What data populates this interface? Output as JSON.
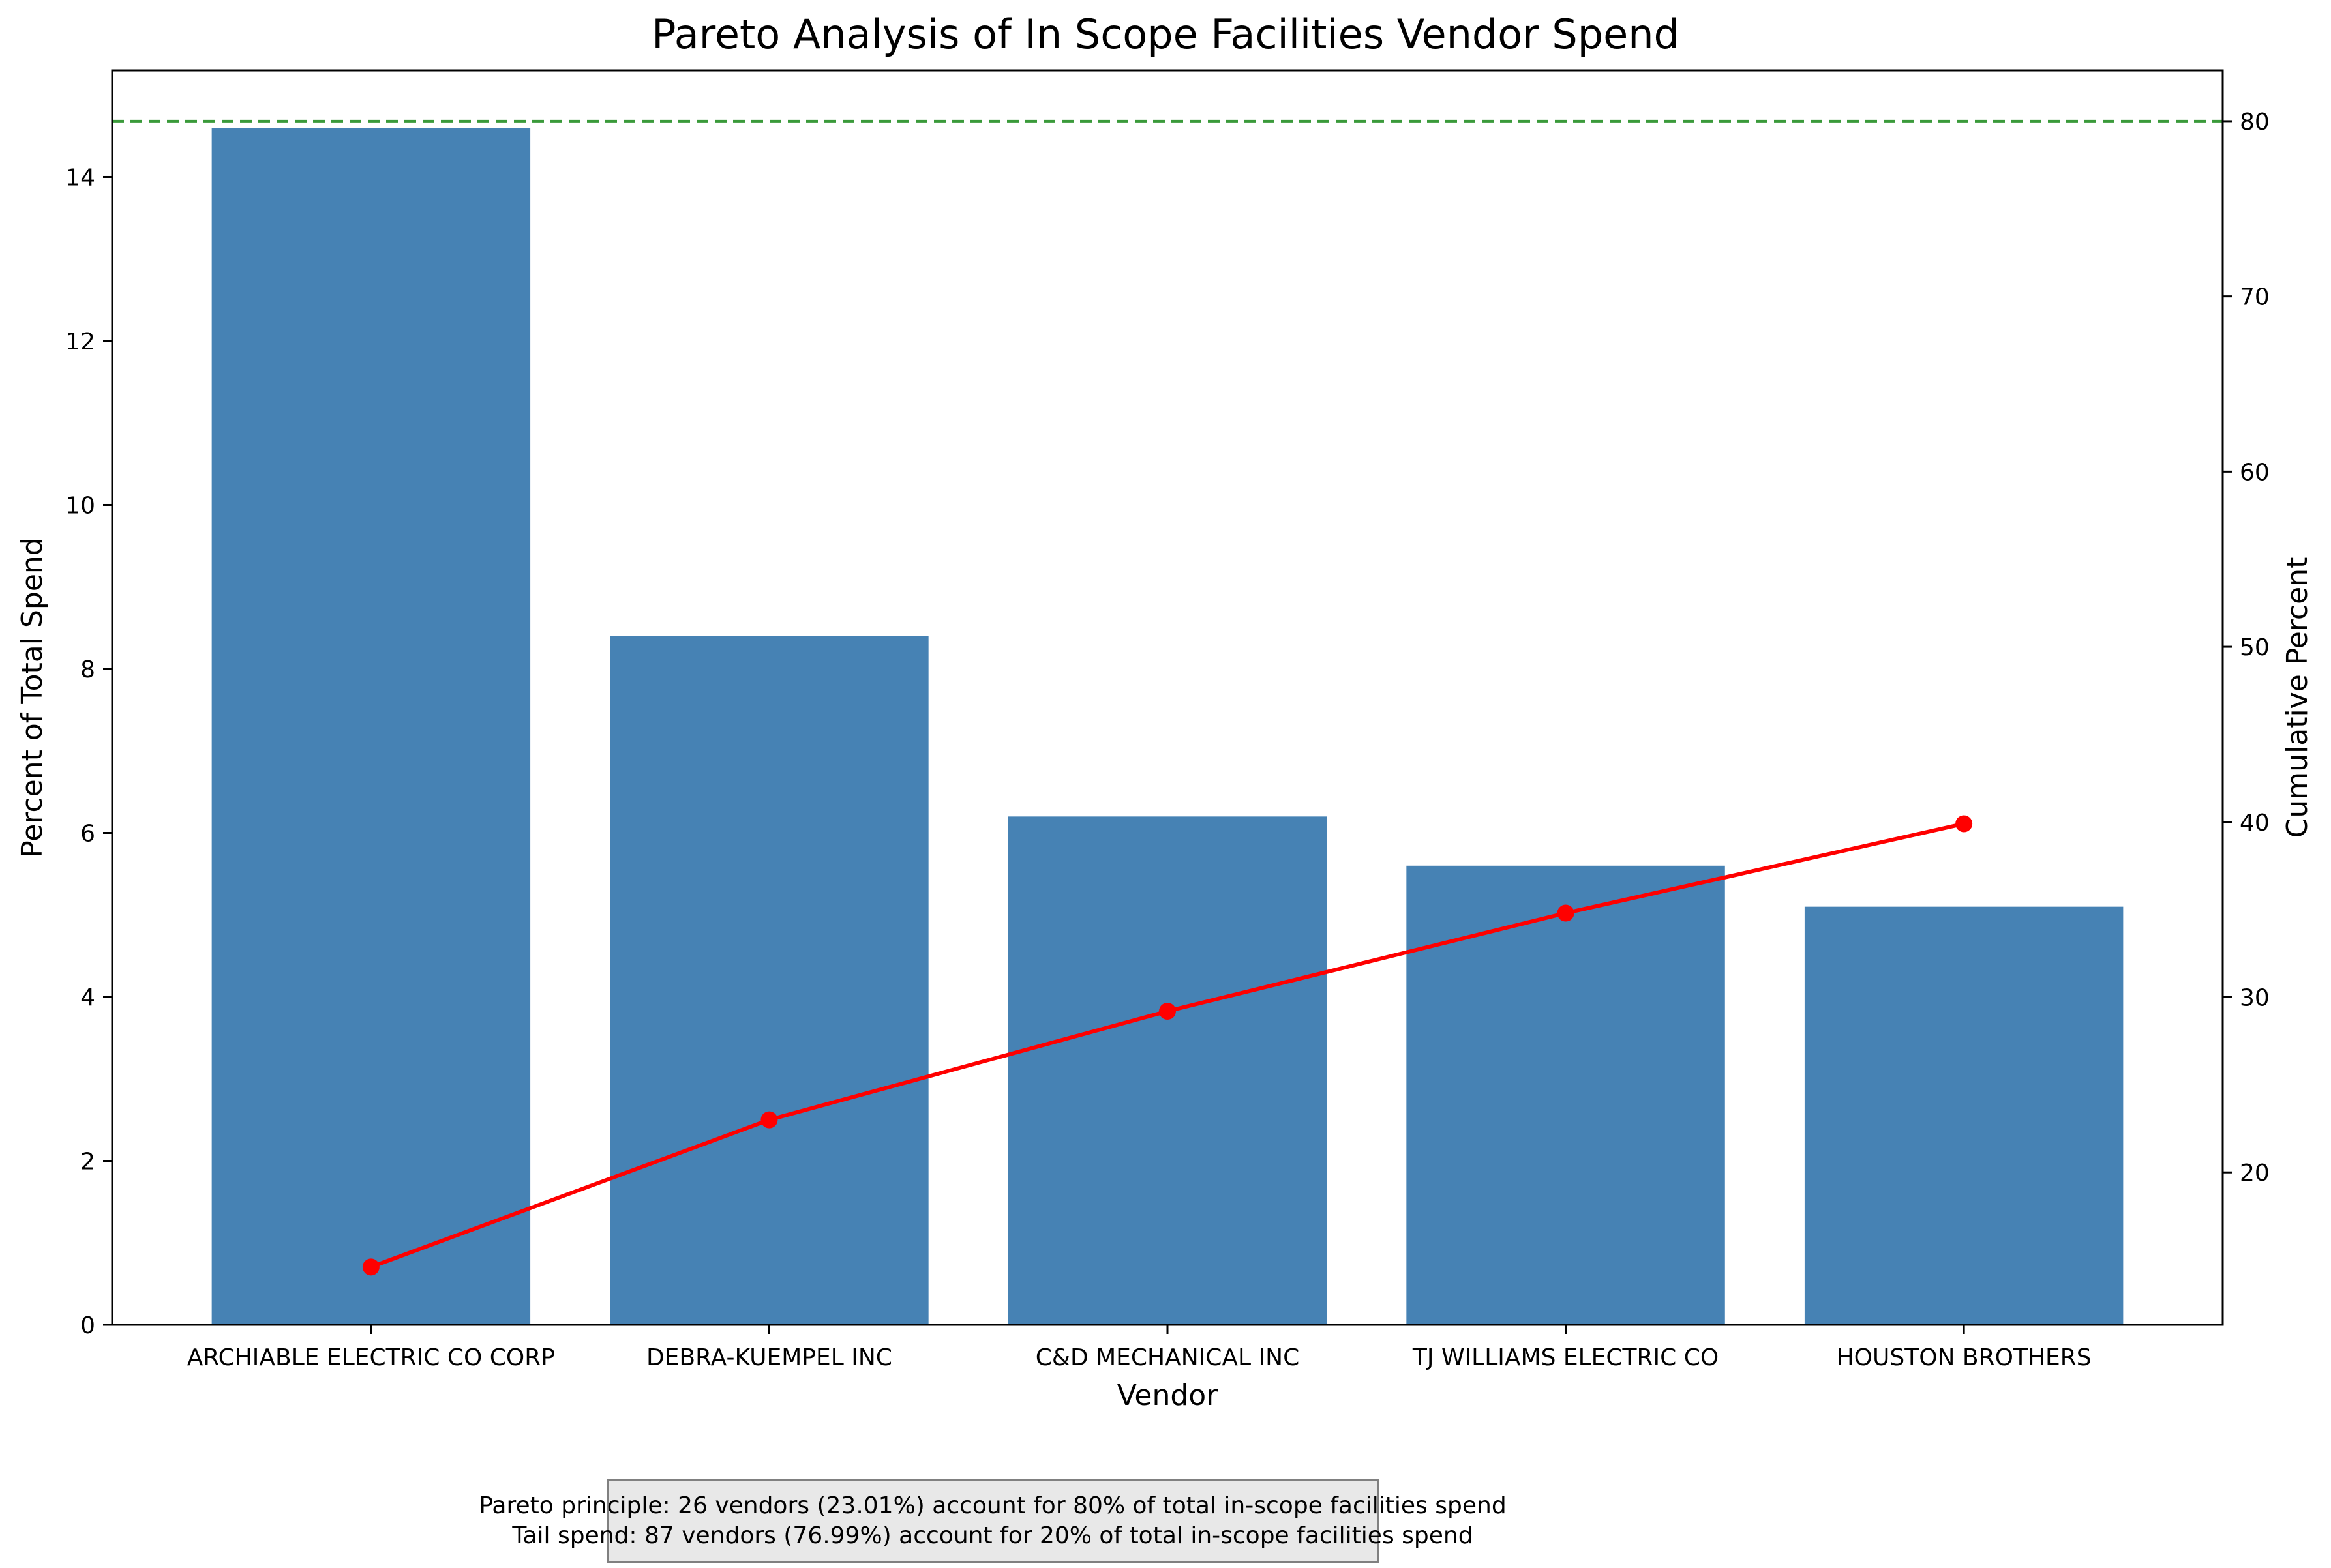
{
  "chart_data": {
    "type": "bar",
    "title": "Pareto Analysis of In Scope Facilities Vendor Spend",
    "xlabel": "Vendor",
    "ylabel": "Percent of Total Spend",
    "y2label": "Cumulative Percent",
    "categories": [
      "ARCHIABLE ELECTRIC CO CORP",
      "DEBRA-KUEMPEL INC",
      "C&D MECHANICAL INC",
      "TJ WILLIAMS ELECTRIC CO",
      "HOUSTON BROTHERS"
    ],
    "series": [
      {
        "type": "bar",
        "axis": "left",
        "color": "#4682b4",
        "values": [
          14.6,
          8.4,
          6.2,
          5.6,
          5.1
        ]
      },
      {
        "type": "line",
        "axis": "right",
        "color": "#ff0000",
        "marker": "circle",
        "values": [
          14.6,
          23.0,
          29.2,
          34.8,
          39.9
        ]
      }
    ],
    "reference_lines": [
      {
        "axis": "right",
        "value": 80,
        "style": "dashed",
        "color": "#3a9a3a"
      }
    ],
    "ylim": [
      0,
      15.3
    ],
    "yticks": [
      0,
      2,
      4,
      6,
      8,
      10,
      12,
      14
    ],
    "y2lim": [
      11.3,
      82.9
    ],
    "y2ticks": [
      20,
      30,
      40,
      50,
      60,
      70,
      80
    ],
    "grid": false,
    "legend": "none"
  },
  "annotation": {
    "line1": "Pareto principle: 26 vendors (23.01%) account for 80% of total in-scope facilities spend",
    "line2": "Tail spend: 87 vendors (76.99%) account for 20% of total in-scope facilities spend"
  }
}
